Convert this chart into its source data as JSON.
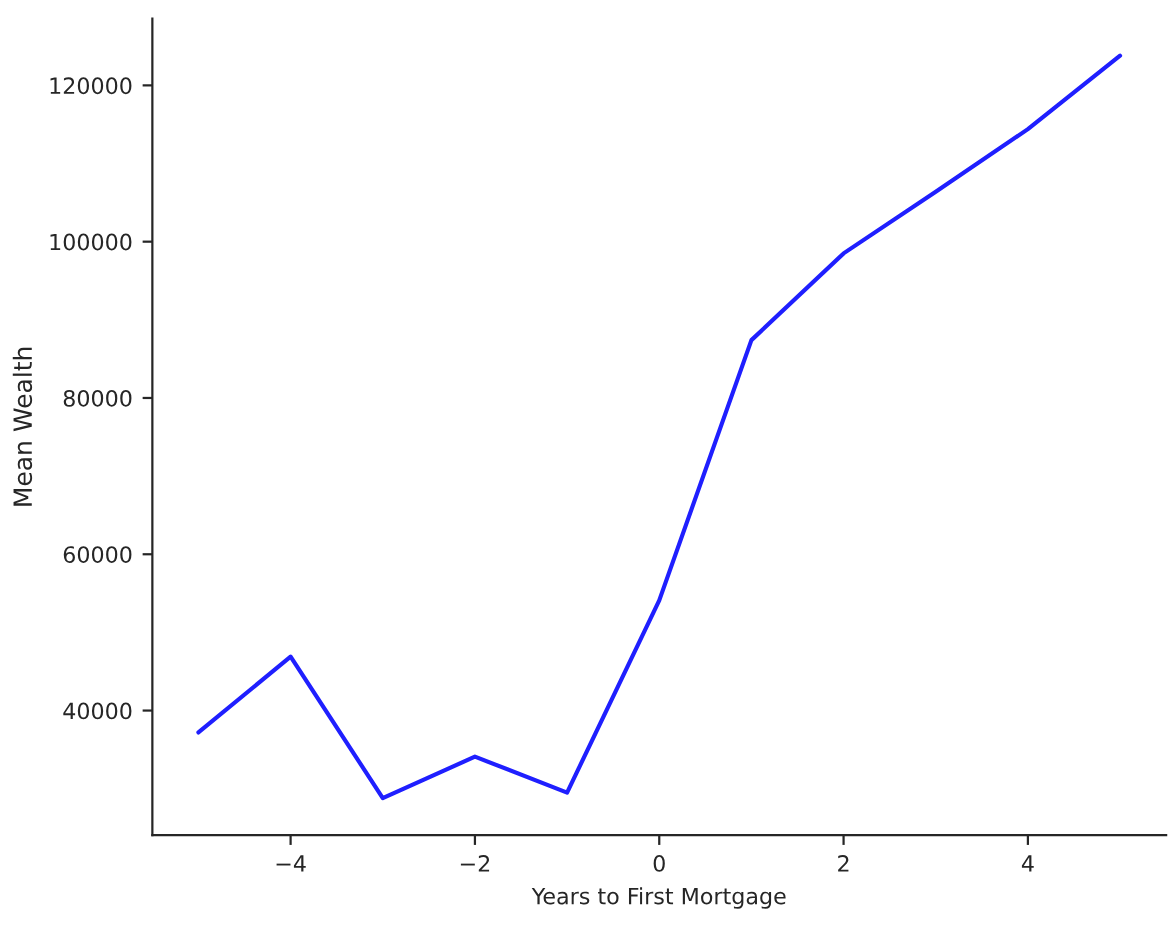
{
  "chart_data": {
    "type": "line",
    "xlabel": "Years to First Mortgage",
    "ylabel": "Mean Wealth",
    "x": [
      -5,
      -4,
      -3,
      -2,
      -1,
      0,
      1,
      2,
      3,
      4,
      5
    ],
    "series": [
      {
        "color": "#1f1fff",
        "values": [
          37200,
          46900,
          28800,
          34100,
          29500,
          54100,
          87400,
          98500,
          106400,
          114400,
          123800
        ]
      }
    ],
    "xlim": [
      -5.5,
      5.5
    ],
    "ylim": [
      24050,
      128550
    ],
    "xticks": [
      {
        "value": -4,
        "label": "−4"
      },
      {
        "value": -2,
        "label": "−2"
      },
      0,
      2,
      4
    ],
    "yticks": [
      40000,
      60000,
      80000,
      100000,
      120000
    ],
    "grid": false,
    "legend": false
  }
}
